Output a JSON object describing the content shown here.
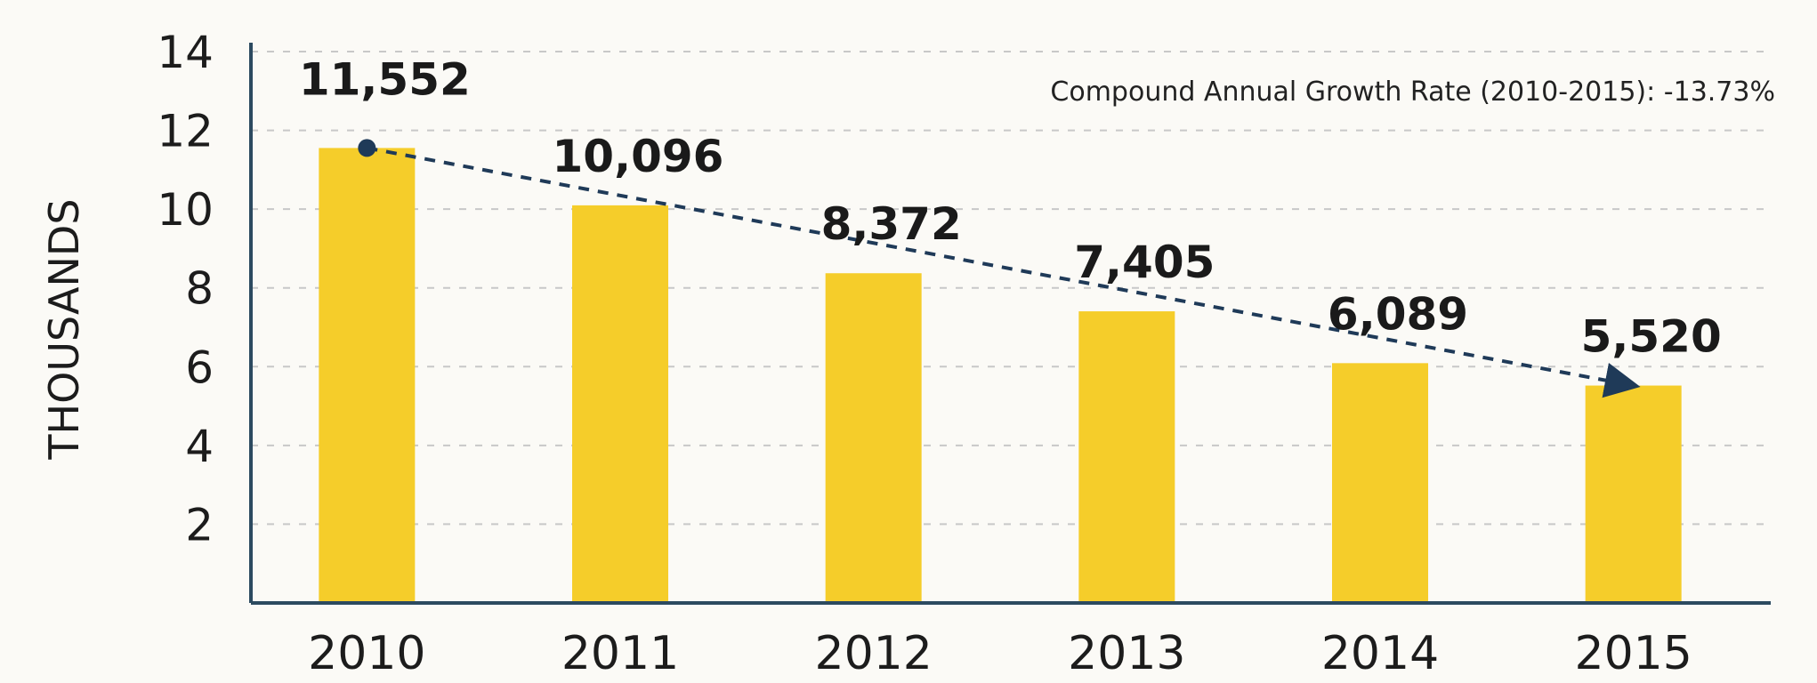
{
  "chart_data": {
    "type": "bar",
    "title": "",
    "xlabel": "",
    "ylabel": "THOUSANDS",
    "categories": [
      "2010",
      "2011",
      "2012",
      "2013",
      "2014",
      "2015"
    ],
    "values": [
      11.552,
      10.096,
      8.372,
      7.405,
      6.089,
      5.52
    ],
    "data_labels": [
      "11,552",
      "10,096",
      "8,372",
      "7,405",
      "6,089",
      "5,520"
    ],
    "yticks": [
      "2",
      "4",
      "6",
      "8",
      "10",
      "12",
      "14"
    ],
    "ylim": [
      0,
      14
    ],
    "grid": true,
    "legend": "none",
    "trend_line": {
      "style": "dashed-arrow",
      "from": "2010",
      "to": "2015"
    },
    "annotation": "Compound Annual Growth Rate (2010-2015): -13.73%",
    "colors": {
      "bar": "#f5cd2a",
      "axis": "#2c4a60",
      "trend": "#1f3a58",
      "grid": "#c8c8c8"
    }
  }
}
